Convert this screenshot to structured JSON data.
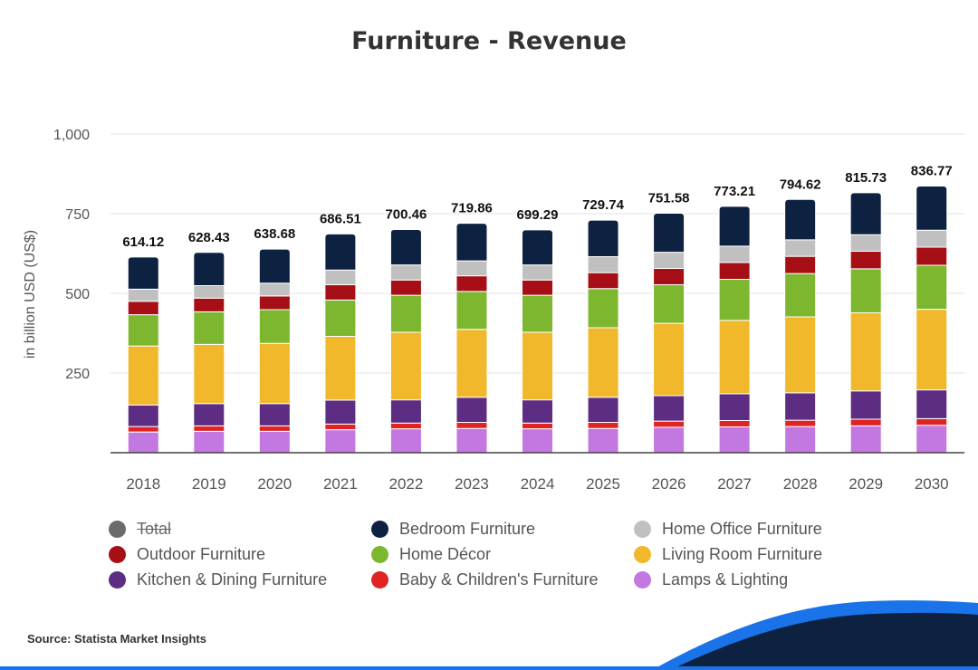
{
  "chart_data": {
    "type": "bar",
    "stacked": true,
    "title": "Furniture - Revenue",
    "ylabel": "in billion USD (US$)",
    "xlabel": "",
    "ylim": [
      0,
      1000
    ],
    "yticks": [
      250,
      500,
      750,
      1000
    ],
    "ytick_labels": [
      "250",
      "500",
      "750",
      "1,000"
    ],
    "categories": [
      "2018",
      "2019",
      "2020",
      "2021",
      "2022",
      "2023",
      "2024",
      "2025",
      "2026",
      "2027",
      "2028",
      "2029",
      "2030"
    ],
    "totals": [
      614.12,
      628.43,
      638.68,
      686.51,
      700.46,
      719.86,
      699.29,
      729.74,
      751.58,
      773.21,
      794.62,
      815.73,
      836.77
    ],
    "total_labels": [
      "614.12",
      "628.43",
      "638.68",
      "686.51",
      "700.46",
      "719.86",
      "699.29",
      "729.74",
      "751.58",
      "773.21",
      "794.62",
      "815.73",
      "836.77"
    ],
    "series": [
      {
        "name": "Lamps & Lighting",
        "color": "#c377e0",
        "values": [
          65,
          67,
          67,
          72,
          75,
          76,
          75,
          76,
          80,
          81,
          82,
          84,
          86
        ]
      },
      {
        "name": "Baby & Children's Furniture",
        "color": "#e02424",
        "values": [
          17,
          17,
          17,
          18,
          18,
          19,
          18,
          19,
          19,
          20,
          20,
          21,
          21
        ]
      },
      {
        "name": "Kitchen & Dining Furniture",
        "color": "#5c2d82",
        "values": [
          68,
          70,
          70,
          75,
          73,
          79,
          73,
          79,
          80,
          84,
          86,
          89,
          90
        ]
      },
      {
        "name": "Living Room Furniture",
        "color": "#f0b82a",
        "values": [
          185,
          186,
          189,
          200,
          212,
          213,
          212,
          218,
          227,
          230,
          238,
          245,
          253
        ]
      },
      {
        "name": "Home Décor",
        "color": "#7db72f",
        "values": [
          98,
          102,
          106,
          114,
          116,
          119,
          116,
          123,
          121,
          129,
          136,
          138,
          138
        ]
      },
      {
        "name": "Outdoor Furniture",
        "color": "#a50f15",
        "values": [
          42,
          43,
          43,
          48,
          48,
          49,
          48,
          50,
          51,
          53,
          54,
          55,
          57
        ]
      },
      {
        "name": "Home Office Furniture",
        "color": "#c0c0c0",
        "values": [
          38,
          39,
          40,
          46,
          47,
          47,
          47,
          50,
          51,
          51,
          52,
          52,
          53
        ]
      },
      {
        "name": "Bedroom Furniture",
        "color": "#0d2240",
        "values": [
          101.12,
          104.43,
          106.68,
          113.51,
          111.46,
          117.86,
          110.29,
          114.74,
          122.58,
          125.21,
          126.62,
          131.73,
          138.77
        ]
      }
    ],
    "legend": [
      {
        "name": "Total",
        "color": "#6b6b6b",
        "disabled": true
      },
      {
        "name": "Bedroom Furniture",
        "color": "#0d2240"
      },
      {
        "name": "Home Office Furniture",
        "color": "#c0c0c0"
      },
      {
        "name": "Outdoor Furniture",
        "color": "#a50f15"
      },
      {
        "name": "Home Décor",
        "color": "#7db72f"
      },
      {
        "name": "Living Room Furniture",
        "color": "#f0b82a"
      },
      {
        "name": "Kitchen & Dining Furniture",
        "color": "#5c2d82"
      },
      {
        "name": "Baby & Children's Furniture",
        "color": "#e02424"
      },
      {
        "name": "Lamps & Lighting",
        "color": "#c377e0"
      }
    ],
    "legend_position": "bottom",
    "grid": true
  },
  "source": "Source: Statista Market Insights",
  "colors": {
    "footer_wave_dark": "#0d2240",
    "footer_wave_blue": "#1a73e8"
  }
}
